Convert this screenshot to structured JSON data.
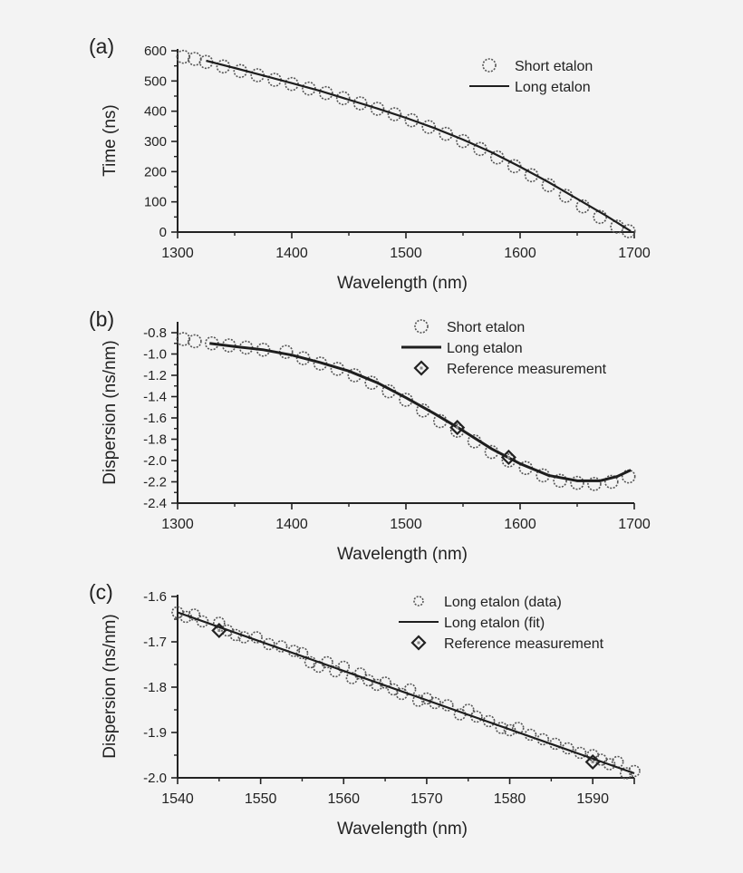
{
  "chart_data": [
    {
      "panel_label": "(a)",
      "type": "line",
      "xlabel": "Wavelength (nm)",
      "ylabel": "Time (ns)",
      "xlim": [
        1300,
        1700
      ],
      "ylim": [
        0,
        600
      ],
      "xticks": [
        "1300",
        "1400",
        "1500",
        "1600",
        "1700"
      ],
      "yticks": [
        "0",
        "100",
        "200",
        "300",
        "400",
        "500",
        "600"
      ],
      "grid": false,
      "legend_position": "top-right",
      "series": [
        {
          "name": "Short etalon",
          "style": "circles",
          "x": [
            1305,
            1315,
            1325,
            1340,
            1355,
            1370,
            1385,
            1400,
            1415,
            1430,
            1445,
            1460,
            1475,
            1490,
            1505,
            1520,
            1535,
            1550,
            1565,
            1580,
            1595,
            1610,
            1625,
            1640,
            1655,
            1670,
            1685,
            1695
          ],
          "y": [
            580,
            573,
            563,
            548,
            533,
            519,
            504,
            490,
            475,
            460,
            443,
            426,
            408,
            390,
            370,
            348,
            325,
            301,
            275,
            247,
            218,
            188,
            155,
            120,
            85,
            50,
            18,
            3
          ]
        },
        {
          "name": "Long etalon",
          "style": "line",
          "x": [
            1325,
            1350,
            1375,
            1400,
            1425,
            1450,
            1475,
            1500,
            1525,
            1550,
            1575,
            1600,
            1625,
            1650,
            1675,
            1697
          ],
          "y": [
            567,
            543,
            518,
            493,
            467,
            438,
            409,
            378,
            344,
            306,
            264,
            216,
            165,
            110,
            55,
            3
          ]
        }
      ]
    },
    {
      "panel_label": "(b)",
      "type": "line",
      "xlabel": "Wavelength (nm)",
      "ylabel": "Dispersion (ns/nm)",
      "xlim": [
        1300,
        1700
      ],
      "ylim": [
        -2.4,
        -0.8
      ],
      "xticks": [
        "1300",
        "1400",
        "1500",
        "1600",
        "1700"
      ],
      "yticks": [
        "-0.8",
        "-1.0",
        "-1.2",
        "-1.4",
        "-1.6",
        "-1.8",
        "-2.0",
        "-2.2",
        "-2.4"
      ],
      "grid": false,
      "legend_position": "top-right",
      "series": [
        {
          "name": "Short etalon",
          "style": "circles",
          "x": [
            1305,
            1315,
            1330,
            1345,
            1360,
            1375,
            1395,
            1410,
            1425,
            1440,
            1455,
            1470,
            1485,
            1500,
            1515,
            1530,
            1545,
            1560,
            1575,
            1590,
            1605,
            1620,
            1635,
            1650,
            1665,
            1680,
            1695
          ],
          "y": [
            -0.86,
            -0.88,
            -0.9,
            -0.92,
            -0.94,
            -0.96,
            -0.98,
            -1.04,
            -1.09,
            -1.14,
            -1.2,
            -1.27,
            -1.35,
            -1.43,
            -1.53,
            -1.63,
            -1.72,
            -1.82,
            -1.92,
            -2.0,
            -2.07,
            -2.14,
            -2.19,
            -2.21,
            -2.22,
            -2.2,
            -2.15
          ]
        },
        {
          "name": "Long etalon",
          "style": "line",
          "x": [
            1328,
            1350,
            1375,
            1400,
            1425,
            1450,
            1475,
            1500,
            1525,
            1550,
            1575,
            1600,
            1625,
            1650,
            1670,
            1685,
            1697
          ],
          "y": [
            -0.9,
            -0.93,
            -0.96,
            -1.01,
            -1.08,
            -1.16,
            -1.27,
            -1.41,
            -1.56,
            -1.72,
            -1.89,
            -2.03,
            -2.14,
            -2.19,
            -2.19,
            -2.15,
            -2.09
          ]
        },
        {
          "name": "Reference measurement",
          "style": "diamonds",
          "x": [
            1545,
            1590
          ],
          "y": [
            -1.69,
            -1.97
          ]
        }
      ]
    },
    {
      "panel_label": "(c)",
      "type": "line",
      "xlabel": "Wavelength (nm)",
      "ylabel": "Dispersion (ns/nm)",
      "xlim": [
        1540,
        1595
      ],
      "ylim": [
        -2.0,
        -1.6
      ],
      "xticks": [
        "1540",
        "1550",
        "1560",
        "1570",
        "1580",
        "1590"
      ],
      "yticks": [
        "-1.6",
        "-1.7",
        "-1.8",
        "-1.9",
        "-2.0"
      ],
      "grid": false,
      "legend_position": "top-right",
      "series": [
        {
          "name": "Long etalon (data)",
          "style": "circles",
          "x": [
            1540,
            1541,
            1542,
            1543,
            1545,
            1546,
            1547,
            1548,
            1549.5,
            1551,
            1552.5,
            1554,
            1555,
            1556,
            1557,
            1558,
            1559,
            1560,
            1561,
            1562,
            1563,
            1564,
            1565,
            1566,
            1567,
            1568,
            1569,
            1570,
            1571,
            1572.5,
            1574,
            1575,
            1576,
            1577.5,
            1579,
            1580,
            1581,
            1582.5,
            1584,
            1585.5,
            1587,
            1588.5,
            1590,
            1591,
            1592,
            1593,
            1594,
            1595
          ],
          "y": [
            -1.635,
            -1.645,
            -1.64,
            -1.655,
            -1.658,
            -1.675,
            -1.685,
            -1.69,
            -1.69,
            -1.705,
            -1.71,
            -1.72,
            -1.725,
            -1.745,
            -1.755,
            -1.745,
            -1.765,
            -1.755,
            -1.78,
            -1.77,
            -1.785,
            -1.795,
            -1.79,
            -1.805,
            -1.815,
            -1.805,
            -1.83,
            -1.825,
            -1.835,
            -1.84,
            -1.86,
            -1.85,
            -1.865,
            -1.875,
            -1.89,
            -1.895,
            -1.89,
            -1.905,
            -1.915,
            -1.925,
            -1.935,
            -1.945,
            -1.95,
            -1.96,
            -1.97,
            -1.965,
            -1.99,
            -1.985
          ]
        },
        {
          "name": "Long etalon (fit)",
          "style": "line",
          "x": [
            1540,
            1595
          ],
          "y": [
            -1.635,
            -1.99
          ]
        },
        {
          "name": "Reference measurement",
          "style": "diamonds",
          "x": [
            1545,
            1590
          ],
          "y": [
            -1.675,
            -1.965
          ]
        }
      ]
    }
  ]
}
